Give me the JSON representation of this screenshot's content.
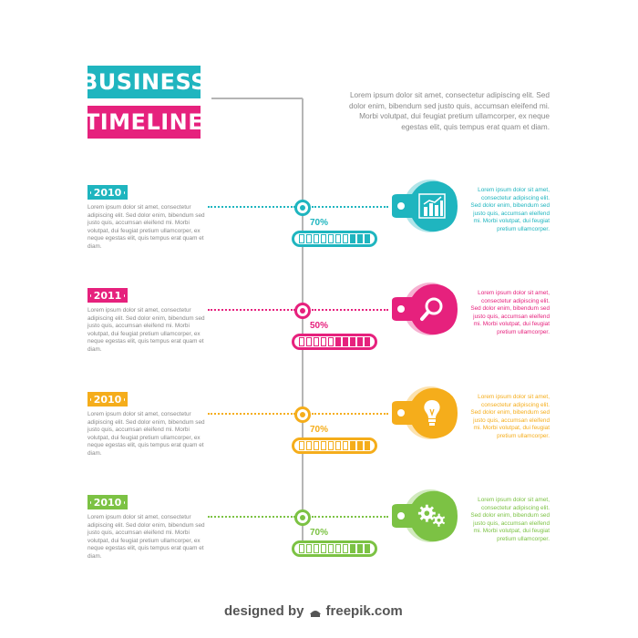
{
  "title": {
    "line1": "BUSINESS",
    "line2": "TIMELINE"
  },
  "intro": "Lorem ipsum dolor sit amet, consectetur adipiscing elit. Sed dolor enim, bibendum sed justo quis, accumsan eleifend mi. Morbi volutpat, dui feugiat pretium ullamcorper, ex neque egestas elit, quis tempus erat quam et diam.",
  "milestones": [
    {
      "year": "2010",
      "color": "#1fb5bf",
      "text": "Lorem ipsum dolor sit amet, consectetur adipiscing elit. Sed dolor enim, bibendum sed justo quis, accumsan eleifend mi. Morbi volutpat, dui feugiat pretium ullamcorper, ex neque egestas elit, quis tempus erat quam et diam.",
      "percent_label": "70%",
      "progress": 0.7,
      "icon": "bar-chart-icon",
      "side_text": "Lorem ipsum dolor sit amet, consectetur adipiscing elit. Sed dolor enim, bibendum sed justo quis, accumsan eleifend mi. Morbi volutpat, dui feugiat pretium ullamcorper."
    },
    {
      "year": "2011",
      "color": "#e6217d",
      "text": "Lorem ipsum dolor sit amet, consectetur adipiscing elit. Sed dolor enim, bibendum sed justo quis, accumsan eleifend mi. Morbi volutpat, dui feugiat pretium ullamcorper, ex neque egestas elit, quis tempus erat quam et diam.",
      "percent_label": "50%",
      "progress": 0.5,
      "icon": "magnifier-icon",
      "side_text": "Lorem ipsum dolor sit amet, consectetur adipiscing elit. Sed dolor enim, bibendum sed justo quis, accumsan eleifend mi. Morbi volutpat, dui feugiat pretium ullamcorper."
    },
    {
      "year": "2010",
      "color": "#f5ad1b",
      "text": "Lorem ipsum dolor sit amet, consectetur adipiscing elit. Sed dolor enim, bibendum sed justo quis, accumsan eleifend mi. Morbi volutpat, dui feugiat pretium ullamcorper, ex neque egestas elit, quis tempus erat quam et diam.",
      "percent_label": "70%",
      "progress": 0.7,
      "icon": "lightbulb-icon",
      "side_text": "Lorem ipsum dolor sit amet, consectetur adipiscing elit. Sed dolor enim, bibendum sed justo quis, accumsan eleifend mi. Morbi volutpat, dui feugiat pretium ullamcorper."
    },
    {
      "year": "2010",
      "color": "#7cc244",
      "text": "Lorem ipsum dolor sit amet, consectetur adipiscing elit. Sed dolor enim, bibendum sed justo quis, accumsan eleifend mi. Morbi volutpat, dui feugiat pretium ullamcorper, ex neque egestas elit, quis tempus erat quam et diam.",
      "percent_label": "70%",
      "progress": 0.7,
      "icon": "gears-icon",
      "side_text": "Lorem ipsum dolor sit amet, consectetur adipiscing elit. Sed dolor enim, bibendum sed justo quis, accumsan eleifend mi. Morbi volutpat, dui feugiat pretium ullamcorper."
    }
  ],
  "watermark": {
    "text": "designed by",
    "brand": "freepik.com"
  }
}
